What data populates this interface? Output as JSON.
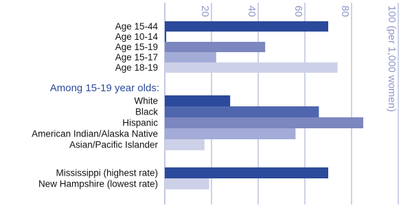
{
  "chart_data": {
    "type": "bar",
    "xlim": [
      0,
      100
    ],
    "xticks": [
      20,
      40,
      60,
      80,
      {
        "value": 100,
        "label": "100 (per 1,000 women)"
      }
    ],
    "grid": true,
    "groups": [
      {
        "categories": [
          "Age 15-44",
          "Age 10-14",
          "Age 15-19",
          "Age 15-17",
          "Age 18-19"
        ],
        "values": [
          70,
          0.6,
          43,
          22,
          74
        ],
        "colors": [
          "#2c4a9b",
          "#2c4a9b",
          "#7c86bf",
          "#a3acd7",
          "#cdd1e8"
        ]
      },
      {
        "title": "Among 15-19 year olds:",
        "categories": [
          "White",
          "Black",
          "Hispanic",
          "American Indian/Alaska Native",
          "Asian/Pacific Islander"
        ],
        "values": [
          28,
          66,
          85,
          56,
          17
        ],
        "colors": [
          "#2c4a9b",
          "#4f66ae",
          "#7c86bf",
          "#a3acd7",
          "#cdd1e8"
        ]
      },
      {
        "categories": [
          "Mississippi (highest rate)",
          "New Hampshire (lowest rate)"
        ],
        "values": [
          70,
          19
        ],
        "colors": [
          "#2c4a9b",
          "#cdd1e8"
        ]
      }
    ]
  }
}
